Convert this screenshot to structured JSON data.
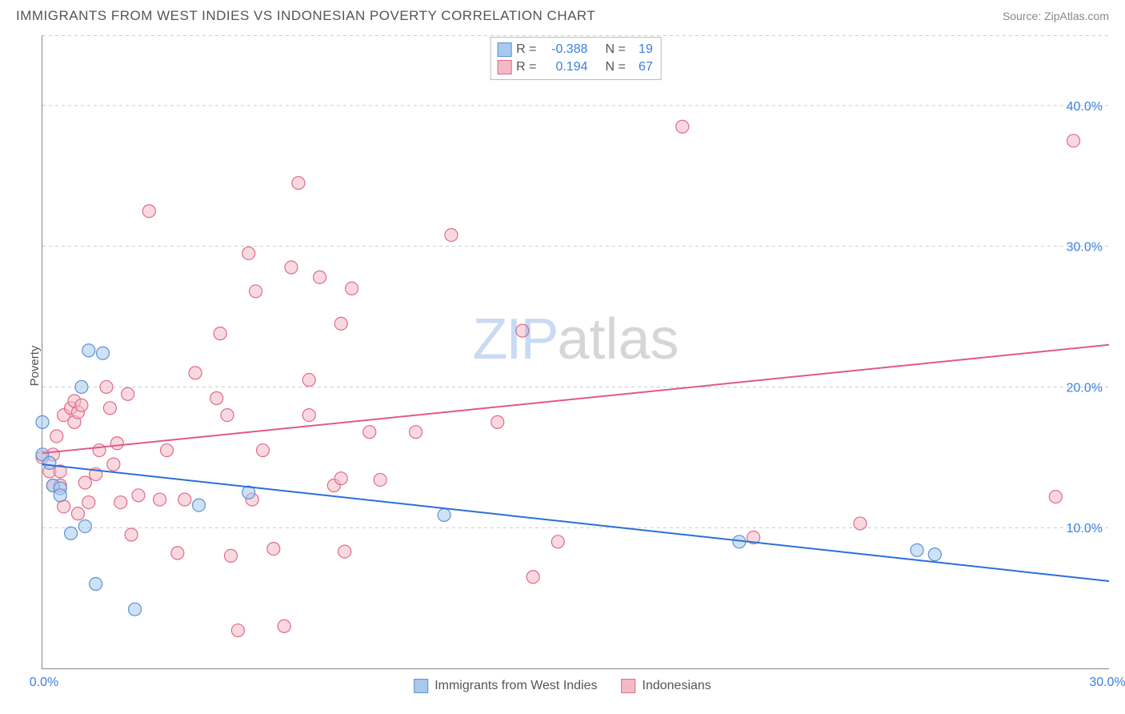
{
  "header": {
    "title": "IMMIGRANTS FROM WEST INDIES VS INDONESIAN POVERTY CORRELATION CHART",
    "source_label": "Source:",
    "source_name": "ZipAtlas.com"
  },
  "ylabel": "Poverty",
  "watermark": {
    "part1": "ZIP",
    "part2": "atlas"
  },
  "chart": {
    "type": "scatter",
    "background_color": "#ffffff",
    "grid_color": "#cccccc",
    "axis_color": "#888888",
    "xlim": [
      0,
      30
    ],
    "ylim": [
      0,
      45
    ],
    "y_ticks": [
      10,
      20,
      30,
      40
    ],
    "y_tick_labels": [
      "10.0%",
      "20.0%",
      "30.0%",
      "40.0%"
    ],
    "x_ticks": [
      0,
      30
    ],
    "x_tick_labels": [
      "0.0%",
      "30.0%"
    ],
    "marker_radius": 8,
    "series": [
      {
        "name": "Immigrants from West Indies",
        "color_fill": "#a8c8ec",
        "color_stroke": "#5a93d6",
        "legend_fill": "#a8c8ec",
        "legend_stroke": "#5a93d6",
        "R": "-0.388",
        "N": "19",
        "trend": {
          "x1": 0,
          "y1": 14.5,
          "x2": 30,
          "y2": 6.2,
          "color": "#2a6fd6"
        },
        "points": [
          [
            0.0,
            17.5
          ],
          [
            0.0,
            15.2
          ],
          [
            0.2,
            14.6
          ],
          [
            0.3,
            13.0
          ],
          [
            0.5,
            12.8
          ],
          [
            0.5,
            12.3
          ],
          [
            1.1,
            20.0
          ],
          [
            1.3,
            22.6
          ],
          [
            1.7,
            22.4
          ],
          [
            1.2,
            10.1
          ],
          [
            1.5,
            6.0
          ],
          [
            2.6,
            4.2
          ],
          [
            4.4,
            11.6
          ],
          [
            5.8,
            12.5
          ],
          [
            11.3,
            10.9
          ],
          [
            19.6,
            9.0
          ],
          [
            24.6,
            8.4
          ],
          [
            25.1,
            8.1
          ],
          [
            0.8,
            9.6
          ]
        ]
      },
      {
        "name": "Indonesians",
        "color_fill": "#f4b9c7",
        "color_stroke": "#e06a8a",
        "legend_fill": "#f4b9c7",
        "legend_stroke": "#e06a8a",
        "R": "0.194",
        "N": "67",
        "trend": {
          "x1": 0,
          "y1": 15.3,
          "x2": 30,
          "y2": 23.0,
          "color": "#e05a85"
        },
        "points": [
          [
            0.0,
            15.0
          ],
          [
            0.2,
            14.0
          ],
          [
            0.3,
            15.2
          ],
          [
            0.3,
            13.0
          ],
          [
            0.5,
            14.0
          ],
          [
            0.5,
            13.0
          ],
          [
            0.6,
            18.0
          ],
          [
            0.8,
            18.5
          ],
          [
            0.9,
            19.0
          ],
          [
            0.9,
            17.5
          ],
          [
            1.0,
            18.2
          ],
          [
            1.1,
            18.7
          ],
          [
            1.2,
            13.2
          ],
          [
            1.5,
            13.8
          ],
          [
            1.6,
            15.5
          ],
          [
            1.8,
            20.0
          ],
          [
            1.9,
            18.5
          ],
          [
            2.0,
            14.5
          ],
          [
            2.1,
            16.0
          ],
          [
            2.4,
            19.5
          ],
          [
            2.5,
            9.5
          ],
          [
            2.7,
            12.3
          ],
          [
            3.0,
            32.5
          ],
          [
            3.3,
            12.0
          ],
          [
            3.5,
            15.5
          ],
          [
            4.0,
            12.0
          ],
          [
            4.3,
            21.0
          ],
          [
            5.0,
            23.8
          ],
          [
            5.2,
            18.0
          ],
          [
            5.3,
            8.0
          ],
          [
            5.5,
            2.7
          ],
          [
            5.8,
            29.5
          ],
          [
            5.9,
            12.0
          ],
          [
            6.0,
            26.8
          ],
          [
            6.2,
            15.5
          ],
          [
            6.5,
            8.5
          ],
          [
            6.8,
            3.0
          ],
          [
            7.0,
            28.5
          ],
          [
            7.2,
            34.5
          ],
          [
            7.5,
            20.5
          ],
          [
            7.5,
            18.0
          ],
          [
            7.8,
            27.8
          ],
          [
            8.2,
            13.0
          ],
          [
            8.4,
            24.5
          ],
          [
            8.4,
            13.5
          ],
          [
            8.5,
            8.3
          ],
          [
            8.7,
            27.0
          ],
          [
            9.2,
            16.8
          ],
          [
            9.5,
            13.4
          ],
          [
            10.5,
            16.8
          ],
          [
            11.5,
            30.8
          ],
          [
            12.8,
            17.5
          ],
          [
            13.5,
            24.0
          ],
          [
            13.8,
            6.5
          ],
          [
            14.5,
            9.0
          ],
          [
            18.0,
            38.5
          ],
          [
            20.0,
            9.3
          ],
          [
            23.0,
            10.3
          ],
          [
            28.5,
            12.2
          ],
          [
            29.0,
            37.5
          ],
          [
            1.0,
            11.0
          ],
          [
            3.8,
            8.2
          ],
          [
            0.4,
            16.5
          ],
          [
            0.6,
            11.5
          ],
          [
            1.3,
            11.8
          ],
          [
            2.2,
            11.8
          ],
          [
            4.9,
            19.2
          ]
        ]
      }
    ]
  },
  "info_box": {
    "rows": [
      {
        "fill": "#a8c8ec",
        "stroke": "#5a93d6",
        "R_label": "R =",
        "R_val": "-0.388",
        "N_label": "N =",
        "N_val": "19"
      },
      {
        "fill": "#f4b9c7",
        "stroke": "#e06a8a",
        "R_label": "R =",
        "R_val": "0.194",
        "N_label": "N =",
        "N_val": "67"
      }
    ]
  },
  "bottom_legend": [
    {
      "fill": "#a8c8ec",
      "stroke": "#5a93d6",
      "label": "Immigrants from West Indies"
    },
    {
      "fill": "#f4b9c7",
      "stroke": "#e06a8a",
      "label": "Indonesians"
    }
  ]
}
